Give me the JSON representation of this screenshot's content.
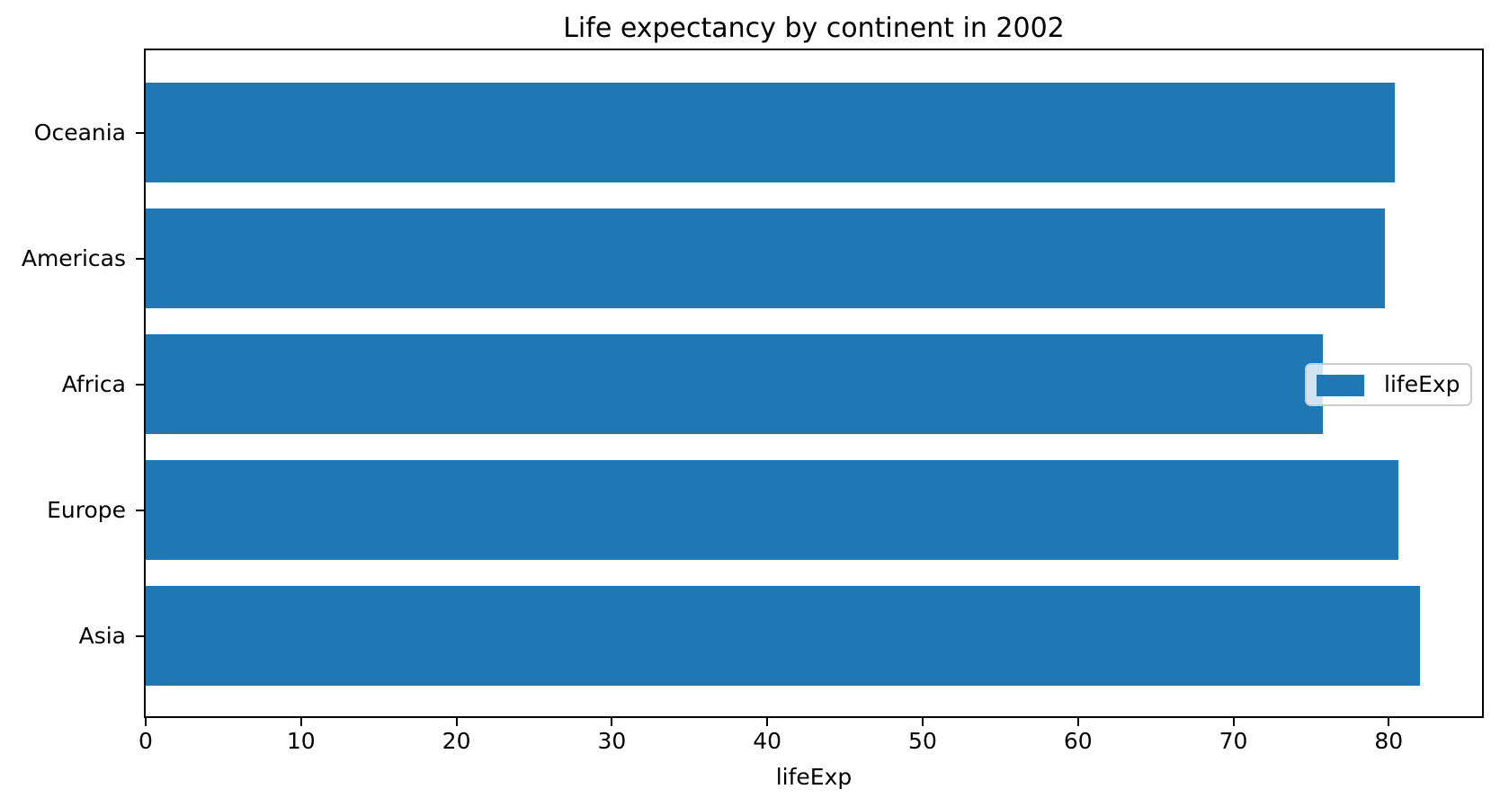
{
  "figure": {
    "background": "#ffffff"
  },
  "chart_data": {
    "type": "bar",
    "orientation": "horizontal",
    "title": "Life expectancy by continent in 2002",
    "xlabel": "lifeExp",
    "ylabel": "",
    "categories": [
      "Oceania",
      "Americas",
      "Africa",
      "Europe",
      "Asia"
    ],
    "values": [
      80.37,
      79.77,
      75.744,
      80.62,
      82.0
    ],
    "series_name": "lifeExp",
    "xlim": [
      0,
      86
    ],
    "xticks": [
      0,
      10,
      20,
      30,
      40,
      50,
      60,
      70,
      80
    ],
    "grid": false,
    "legend": {
      "label": "lifeExp",
      "position": "center-right"
    },
    "colors": {
      "bar": "#1f77b4",
      "spine": "#000000",
      "text": "#000000",
      "legend_border": "#cccccc",
      "legend_background": "rgba(255,255,255,0.8)"
    }
  }
}
